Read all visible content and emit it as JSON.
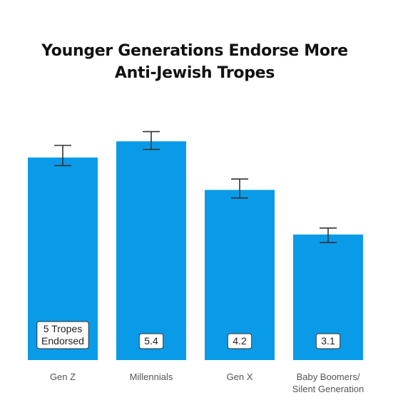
{
  "colors": {
    "bar": "#0a9be8",
    "error_bar": "#333333",
    "label_box_border": "#333333"
  },
  "chart_data": {
    "type": "bar",
    "title_lines": [
      "Younger Generations Endorse More",
      "Anti-Jewish Tropes"
    ],
    "categories": [
      [
        "Gen Z"
      ],
      [
        "Millennials"
      ],
      [
        "Gen X"
      ],
      [
        "Baby Boomers/",
        "Silent Generation"
      ]
    ],
    "values": [
      5.0,
      5.4,
      4.2,
      3.1
    ],
    "error_low": [
      4.8,
      5.2,
      4.0,
      2.9
    ],
    "error_high": [
      5.3,
      5.64,
      4.47,
      3.26
    ],
    "data_labels": [
      [
        "5 Tropes",
        "Endorsed"
      ],
      [
        "5.4"
      ],
      [
        "4.2"
      ],
      [
        "3.1"
      ]
    ],
    "xlabel": "",
    "ylabel": "",
    "ylim": [
      0,
      6.6
    ],
    "grid": false,
    "legend": "none"
  }
}
